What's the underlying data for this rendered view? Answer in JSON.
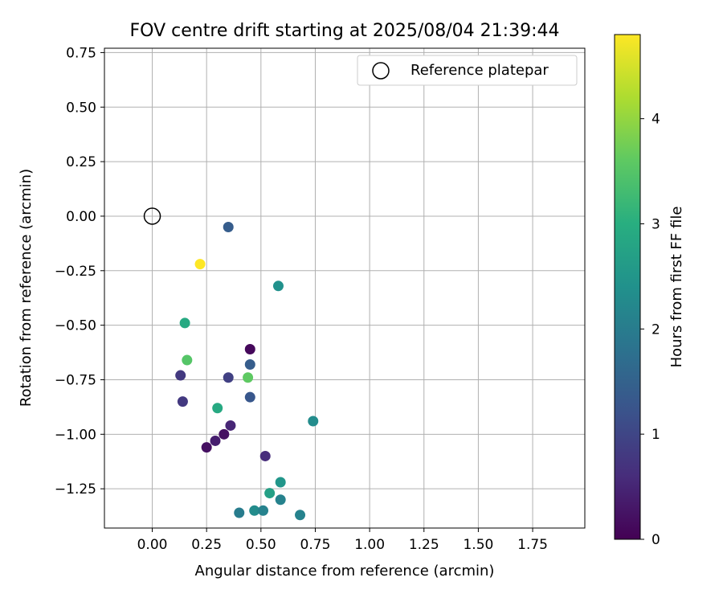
{
  "chart_data": {
    "type": "scatter",
    "title": "FOV centre drift starting at 2025/08/04 21:39:44",
    "xlabel": "Angular distance from reference (arcmin)",
    "ylabel": "Rotation from reference (arcmin)",
    "xlim": [
      -0.22,
      1.99
    ],
    "ylim": [
      -1.43,
      0.77
    ],
    "xticks": [
      0.0,
      0.25,
      0.5,
      0.75,
      1.0,
      1.25,
      1.5,
      1.75
    ],
    "xtick_labels": [
      "0.00",
      "0.25",
      "0.50",
      "0.75",
      "1.00",
      "1.25",
      "1.50",
      "1.75"
    ],
    "yticks": [
      0.75,
      0.5,
      0.25,
      0.0,
      -0.25,
      -0.5,
      -0.75,
      -1.0,
      -1.25
    ],
    "ytick_labels": [
      "0.75",
      "0.50",
      "0.25",
      "0.00",
      "−0.25",
      "−0.50",
      "−0.75",
      "−1.00",
      "−1.25"
    ],
    "grid": true,
    "legend": {
      "position": "top-right",
      "entries": [
        "Reference platepar"
      ]
    },
    "reference_point": {
      "name": "Reference platepar",
      "x": 0.0,
      "y": 0.0
    },
    "colorbar": {
      "label": "Hours from first FF file",
      "min": 0,
      "max": 4.8,
      "ticks": [
        0,
        1,
        2,
        3,
        4
      ],
      "tick_labels": [
        "0",
        "1",
        "2",
        "3",
        "4"
      ],
      "colormap": "viridis"
    },
    "points": [
      {
        "x": 0.35,
        "y": -0.05,
        "hours": 1.4
      },
      {
        "x": 0.22,
        "y": -0.22,
        "hours": 4.8
      },
      {
        "x": 0.58,
        "y": -0.32,
        "hours": 2.4
      },
      {
        "x": 0.15,
        "y": -0.49,
        "hours": 2.9
      },
      {
        "x": 0.45,
        "y": -0.61,
        "hours": 0.1
      },
      {
        "x": 0.16,
        "y": -0.66,
        "hours": 3.5
      },
      {
        "x": 0.45,
        "y": -0.68,
        "hours": 1.4
      },
      {
        "x": 0.13,
        "y": -0.73,
        "hours": 0.8
      },
      {
        "x": 0.35,
        "y": -0.74,
        "hours": 0.9
      },
      {
        "x": 0.44,
        "y": -0.74,
        "hours": 3.6
      },
      {
        "x": 0.45,
        "y": -0.83,
        "hours": 1.3
      },
      {
        "x": 0.14,
        "y": -0.85,
        "hours": 0.8
      },
      {
        "x": 0.3,
        "y": -0.88,
        "hours": 2.9
      },
      {
        "x": 0.74,
        "y": -0.94,
        "hours": 2.3
      },
      {
        "x": 0.36,
        "y": -0.96,
        "hours": 0.5
      },
      {
        "x": 0.33,
        "y": -1.0,
        "hours": 0.2
      },
      {
        "x": 0.29,
        "y": -1.03,
        "hours": 0.4
      },
      {
        "x": 0.25,
        "y": -1.06,
        "hours": 0.2
      },
      {
        "x": 0.52,
        "y": -1.1,
        "hours": 0.6
      },
      {
        "x": 0.59,
        "y": -1.22,
        "hours": 2.5
      },
      {
        "x": 0.54,
        "y": -1.27,
        "hours": 2.7
      },
      {
        "x": 0.59,
        "y": -1.3,
        "hours": 2.1
      },
      {
        "x": 0.47,
        "y": -1.35,
        "hours": 2.3
      },
      {
        "x": 0.51,
        "y": -1.35,
        "hours": 2.1
      },
      {
        "x": 0.4,
        "y": -1.36,
        "hours": 2.0
      },
      {
        "x": 0.68,
        "y": -1.37,
        "hours": 2.1
      }
    ]
  }
}
